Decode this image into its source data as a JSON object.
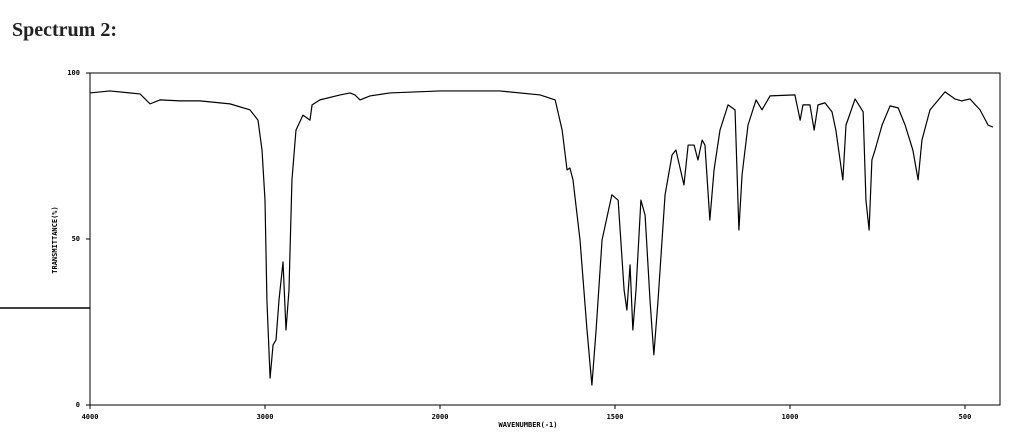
{
  "chart_data": {
    "type": "line",
    "title": "Spectrum 2:",
    "x_label": "WAVENUMBER(-1)",
    "y_label": "TRANSMITTANCE(%)",
    "xlim": [
      4000,
      400
    ],
    "x_scale_break": 2000,
    "xticks": [
      4000,
      3000,
      2000,
      1500,
      1000,
      500
    ],
    "ylim": [
      0,
      100
    ],
    "yticks": [
      0,
      50,
      100
    ],
    "color": "#000000",
    "x": [
      4000,
      3886,
      3714,
      3657,
      3600,
      3486,
      3371,
      3200,
      3086,
      3040,
      3017,
      3000,
      2989,
      2971,
      2954,
      2937,
      2920,
      2897,
      2880,
      2863,
      2846,
      2823,
      2783,
      2743,
      2731,
      2686,
      2571,
      2514,
      2486,
      2457,
      2400,
      2286,
      2000,
      1829,
      1714,
      1671,
      1651,
      1637,
      1629,
      1620,
      1600,
      1580,
      1566,
      1554,
      1537,
      1509,
      1491,
      1474,
      1466,
      1457,
      1449,
      1440,
      1426,
      1414,
      1400,
      1389,
      1377,
      1357,
      1337,
      1326,
      1303,
      1291,
      1274,
      1263,
      1251,
      1243,
      1229,
      1217,
      1200,
      1177,
      1157,
      1146,
      1137,
      1120,
      1097,
      1080,
      1057,
      986,
      971,
      963,
      943,
      931,
      920,
      900,
      880,
      869,
      857,
      849,
      840,
      814,
      791,
      783,
      774,
      766,
      757,
      737,
      714,
      691,
      671,
      649,
      634,
      623,
      600,
      557,
      529,
      509,
      486,
      457,
      434,
      420
    ],
    "values": [
      94.0,
      94.6,
      93.7,
      90.7,
      91.9,
      91.6,
      91.6,
      90.7,
      88.9,
      85.8,
      76.8,
      61.7,
      31.6,
      8.1,
      18.1,
      19.6,
      31.6,
      43.1,
      22.6,
      34.6,
      67.8,
      82.8,
      87.3,
      85.8,
      90.4,
      91.9,
      93.4,
      94.0,
      93.4,
      91.9,
      93.1,
      94.0,
      94.6,
      94.6,
      93.4,
      91.9,
      82.8,
      70.8,
      71.4,
      67.8,
      49.7,
      22.6,
      6.0,
      22.6,
      49.7,
      63.3,
      61.7,
      34.6,
      28.6,
      42.2,
      22.6,
      34.6,
      61.7,
      57.2,
      31.6,
      15.1,
      31.6,
      63.3,
      75.3,
      76.8,
      66.3,
      78.3,
      78.3,
      73.8,
      79.8,
      78.3,
      55.7,
      70.8,
      82.8,
      90.4,
      88.9,
      52.7,
      69.3,
      84.3,
      91.9,
      88.9,
      93.1,
      93.4,
      85.8,
      90.4,
      90.4,
      82.8,
      90.4,
      91.0,
      88.3,
      82.8,
      73.8,
      67.8,
      84.3,
      92.2,
      88.3,
      61.7,
      52.7,
      73.8,
      76.8,
      84.3,
      90.1,
      89.5,
      84.3,
      76.8,
      67.8,
      79.8,
      88.9,
      94.3,
      92.2,
      91.6,
      92.2,
      88.9,
      84.3,
      83.7
    ]
  }
}
